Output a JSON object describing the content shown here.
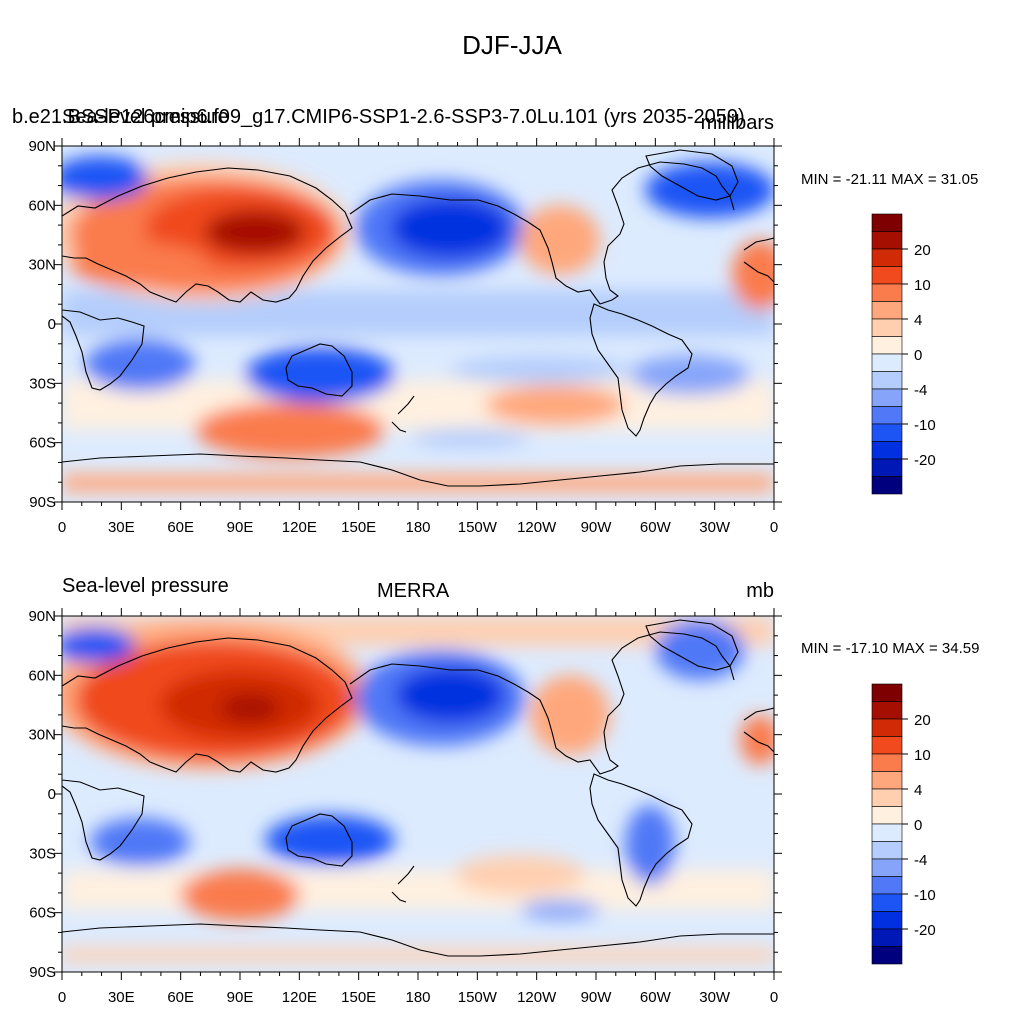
{
  "figure": {
    "title": "DJF-JJA",
    "x_ticks": [
      "0",
      "30E",
      "60E",
      "90E",
      "120E",
      "150E",
      "180",
      "150W",
      "120W",
      "90W",
      "60W",
      "30W",
      "0"
    ],
    "y_ticks": [
      "90N",
      "60N",
      "30N",
      "0",
      "30S",
      "60S",
      "90S"
    ]
  },
  "colorbar": {
    "colors": [
      "#00007f",
      "#0018b6",
      "#0030e0",
      "#1d55f5",
      "#5078f7",
      "#86a5fa",
      "#b4cdfc",
      "#ddebfe",
      "#fff0e0",
      "#ffcfb0",
      "#ffa77c",
      "#fa7c4d",
      "#f04a1e",
      "#d02a06",
      "#a50f01",
      "#7e0000"
    ],
    "labels": [
      "20",
      "10",
      "4",
      "0",
      "-4",
      "-10",
      "-20"
    ]
  },
  "panels": [
    {
      "id": "model",
      "title_left": "Sea-level pressure",
      "title_center": "b.e21.BSSP126cmip6.f09_g17.CMIP6-SSP1-2.6-SSP3-7.0Lu.101 (yrs 2035-2059)",
      "title_right": "millibars",
      "stats": "MIN = -21.11 MAX =  31.05",
      "min": -21.11,
      "max": 31.05
    },
    {
      "id": "obs",
      "title_left": "Sea-level pressure",
      "title_center": "MERRA",
      "title_right": "mb",
      "stats": "MIN = -17.10 MAX =  34.59",
      "min": -17.1,
      "max": 34.59
    }
  ]
}
